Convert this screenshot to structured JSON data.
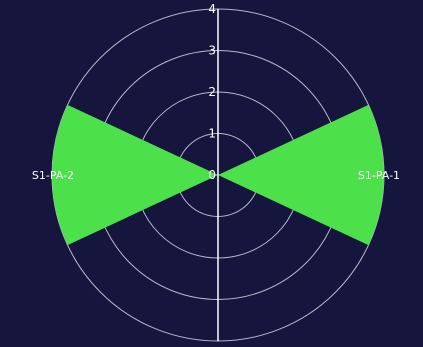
{
  "colors": {
    "background": "#15153d",
    "sector": "#4ce04a",
    "grid": "#c8c8dc",
    "axis": "#ffffff",
    "text": "#ffffff"
  },
  "chart_data": {
    "type": "polar-bar",
    "title": "",
    "radial_range": [
      0,
      4
    ],
    "radial_ticks": [
      "0",
      "1",
      "2",
      "3",
      "4"
    ],
    "grid": true,
    "series": [
      {
        "values": [
          {
            "label": "S1-PA-1",
            "direction_deg": 90,
            "width_deg": 50,
            "r": 4
          },
          {
            "label": "S1-PA-2",
            "direction_deg": 270,
            "width_deg": 50,
            "r": 4
          }
        ]
      }
    ]
  }
}
